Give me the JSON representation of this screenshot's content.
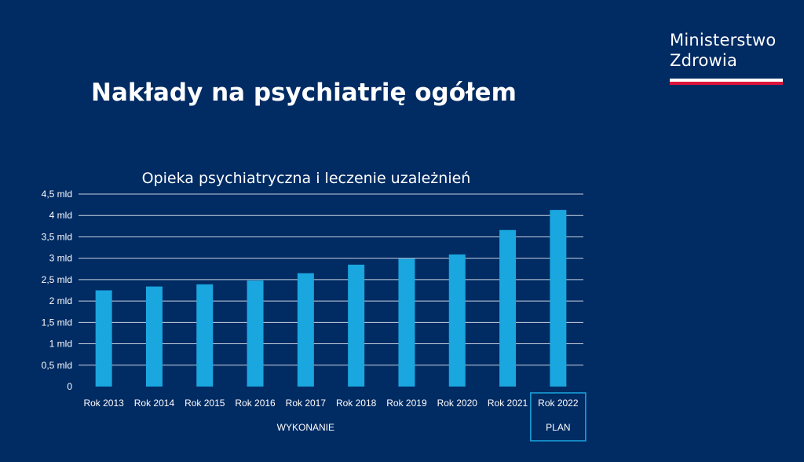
{
  "header": {
    "logo_line1": "Ministerstwo",
    "logo_line2": "Zdrowia",
    "title": "Nakłady na psychiatrię ogółem"
  },
  "colors": {
    "background": "#002b63",
    "bar": "#1aa6df",
    "gridline": "#c8d2e0",
    "plan_box": "#1aa6df",
    "flag_red": "#dc143c"
  },
  "chart_data": {
    "type": "bar",
    "title": "Opieka psychiatryczna i leczenie uzależnień",
    "categories": [
      "Rok 2013",
      "Rok 2014",
      "Rok 2015",
      "Rok 2016",
      "Rok 2017",
      "Rok 2018",
      "Rok 2019",
      "Rok 2020",
      "Rok 2021",
      "Rok 2022"
    ],
    "values": [
      2.25,
      2.34,
      2.39,
      2.48,
      2.65,
      2.85,
      2.99,
      3.09,
      3.66,
      4.13
    ],
    "unit": "mld",
    "ylim": [
      0,
      4.5
    ],
    "yticks": [
      0,
      0.5,
      1,
      1.5,
      2,
      2.5,
      3,
      3.5,
      4,
      4.5
    ],
    "ytick_labels": [
      "0",
      "0,5 mld",
      "1 mld",
      "1,5 mld",
      "2 mld",
      "2,5 mld",
      "3 mld",
      "3,5 mld",
      "4 mld",
      "4,5 mld"
    ],
    "grid": true,
    "group_labels": [
      {
        "label": "WYKONANIE",
        "categories": [
          "Rok 2013",
          "Rok 2014",
          "Rok 2015",
          "Rok 2016",
          "Rok 2017",
          "Rok 2018",
          "Rok 2019",
          "Rok 2020",
          "Rok 2021"
        ]
      },
      {
        "label": "PLAN",
        "categories": [
          "Rok 2022"
        ],
        "boxed": true
      }
    ]
  }
}
